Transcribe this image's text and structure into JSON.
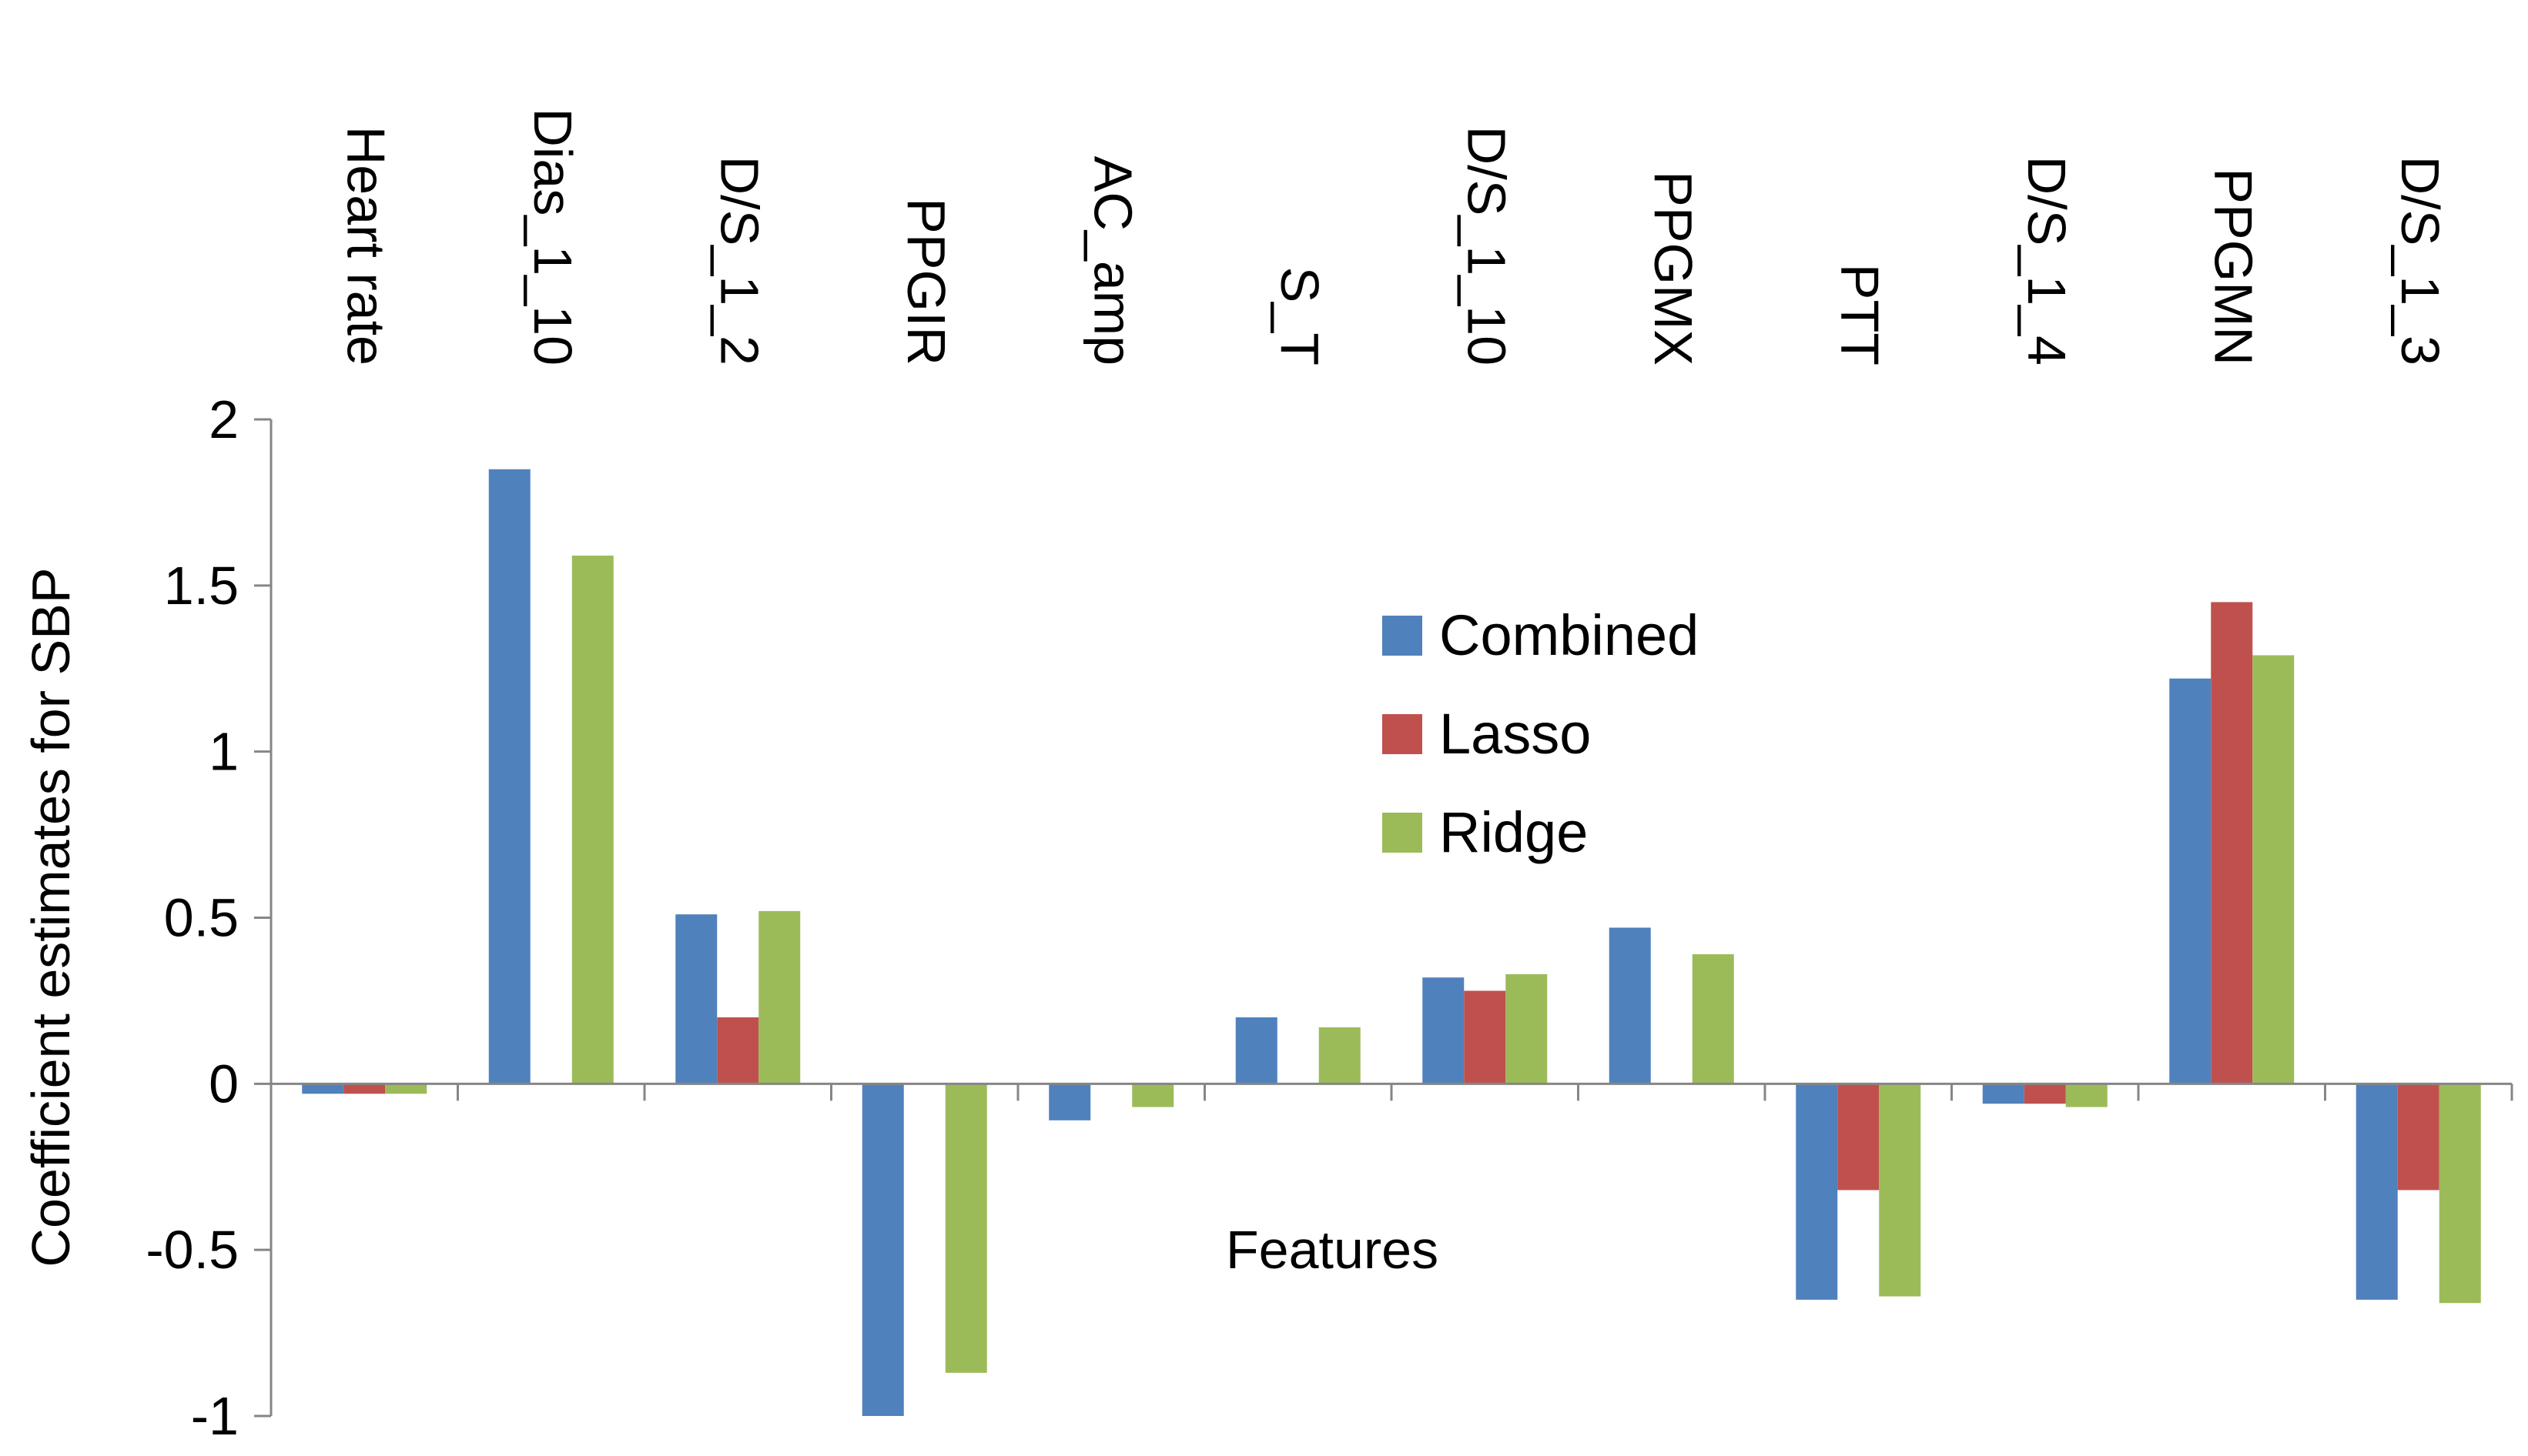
{
  "chart_data": {
    "type": "bar",
    "title": "",
    "xlabel": "Features",
    "ylabel": "Coefficient estimates for SBP",
    "ylim": [
      -1,
      2
    ],
    "yticks": [
      "-1",
      "-0.5",
      "0",
      "0.5",
      "1",
      "1.5",
      "2"
    ],
    "grid": false,
    "legend_position": "center-right",
    "categories": [
      "Heart rate",
      "Dias_1_10",
      "D/S_1_2",
      "PPGIR",
      "AC_amp",
      "S_T",
      "D/S_1_10",
      "PPGMX",
      "PTT",
      "D/S_1_4",
      "PPGMN",
      "D/S_1_3"
    ],
    "series": [
      {
        "name": "Combined",
        "color": "#4F81BD",
        "values": [
          -0.03,
          1.85,
          0.51,
          -1.0,
          -0.11,
          0.2,
          0.32,
          0.47,
          -0.65,
          -0.06,
          1.22,
          -0.65
        ]
      },
      {
        "name": "Lasso",
        "color": "#C0504D",
        "values": [
          -0.03,
          0,
          0.2,
          0,
          0,
          0,
          0.28,
          0,
          -0.32,
          -0.06,
          1.45,
          -0.32
        ]
      },
      {
        "name": "Ridge",
        "color": "#9BBB59",
        "values": [
          -0.03,
          1.59,
          0.52,
          -0.87,
          -0.07,
          0.17,
          0.33,
          0.39,
          -0.64,
          -0.07,
          1.29,
          -0.66
        ]
      }
    ]
  }
}
